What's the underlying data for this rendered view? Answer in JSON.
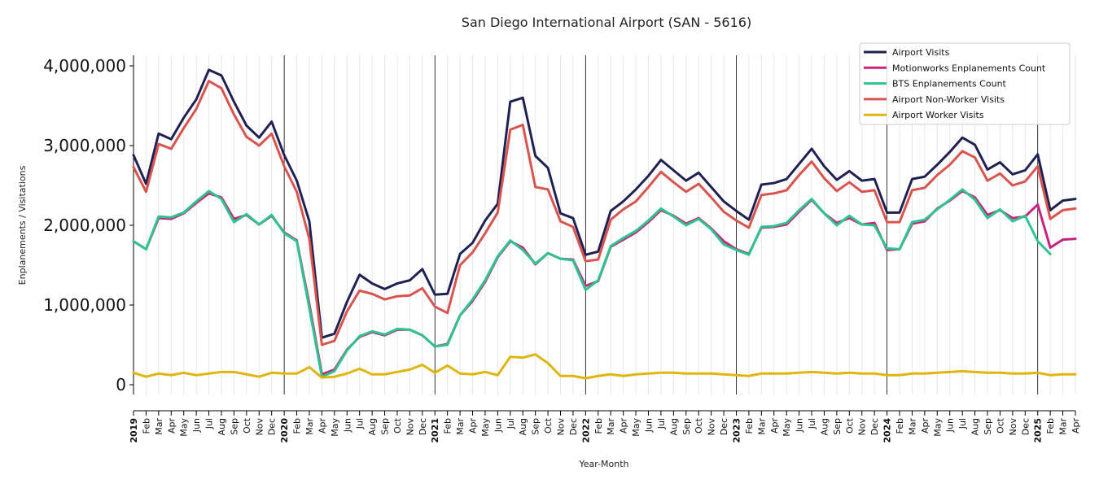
{
  "chart_data": {
    "type": "line",
    "title": "San Diego International Airport (SAN - 5616)",
    "xlabel": "Year-Month",
    "ylabel": "Enplanements / Visitations",
    "ylim": [
      0,
      4000000
    ],
    "yticks": [
      0,
      1000000,
      2000000,
      3000000,
      4000000
    ],
    "ytick_labels": [
      "0",
      "1,000,000",
      "2,000,000",
      "3,000,000",
      "4,000,000"
    ],
    "x_start": "2019-01",
    "x_end": "2025-04",
    "month_labels": [
      "Feb",
      "Mar",
      "Apr",
      "May",
      "Jun",
      "Jul",
      "Aug",
      "Sep",
      "Oct",
      "Nov",
      "Dec"
    ],
    "year_labels": [
      "2019",
      "2020",
      "2021",
      "2022",
      "2023",
      "2024",
      "2025"
    ],
    "extra_labels": [
      "Feb",
      "Mar",
      "Apr"
    ],
    "grid": "vertical-monthly",
    "legend_position": "top-right",
    "series": [
      {
        "name": "Airport Visits",
        "color": "#1f2153",
        "values": [
          2880000,
          2520000,
          3150000,
          3080000,
          3350000,
          3580000,
          3950000,
          3880000,
          3550000,
          3250000,
          3100000,
          3300000,
          2880000,
          2560000,
          2050000,
          590000,
          640000,
          1040000,
          1380000,
          1270000,
          1200000,
          1270000,
          1310000,
          1450000,
          1130000,
          1140000,
          1640000,
          1780000,
          2060000,
          2270000,
          3550000,
          3600000,
          2870000,
          2720000,
          2150000,
          2090000,
          1630000,
          1670000,
          2180000,
          2300000,
          2450000,
          2620000,
          2820000,
          2690000,
          2560000,
          2660000,
          2480000,
          2300000,
          2180000,
          2070000,
          2510000,
          2530000,
          2580000,
          2770000,
          2960000,
          2740000,
          2570000,
          2680000,
          2560000,
          2580000,
          2160000,
          2160000,
          2580000,
          2610000,
          2760000,
          2920000,
          3100000,
          3010000,
          2700000,
          2790000,
          2640000,
          2690000,
          2890000,
          2190000,
          2310000,
          2330000
        ]
      },
      {
        "name": "Motionworks Enplanements Count",
        "color": "#c9237f",
        "values": [
          1800000,
          1700000,
          2090000,
          2080000,
          2150000,
          2280000,
          2400000,
          2350000,
          2080000,
          2130000,
          2010000,
          2120000,
          1910000,
          1810000,
          1010000,
          130000,
          190000,
          440000,
          600000,
          660000,
          620000,
          690000,
          690000,
          620000,
          480000,
          510000,
          870000,
          1050000,
          1290000,
          1600000,
          1800000,
          1720000,
          1510000,
          1650000,
          1580000,
          1570000,
          1240000,
          1300000,
          1730000,
          1820000,
          1910000,
          2040000,
          2190000,
          2120000,
          2020000,
          2090000,
          1960000,
          1800000,
          1700000,
          1640000,
          1970000,
          1980000,
          2010000,
          2170000,
          2320000,
          2150000,
          2030000,
          2090000,
          2010000,
          2030000,
          1690000,
          1700000,
          2020000,
          2050000,
          2210000,
          2310000,
          2430000,
          2350000,
          2130000,
          2190000,
          2090000,
          2110000,
          2260000,
          1720000,
          1820000,
          1830000
        ]
      },
      {
        "name": "BTS Enplanements Count",
        "color": "#2ec48f",
        "values": [
          1800000,
          1700000,
          2110000,
          2100000,
          2160000,
          2300000,
          2430000,
          2330000,
          2040000,
          2140000,
          2010000,
          2130000,
          1900000,
          1800000,
          960000,
          100000,
          170000,
          430000,
          610000,
          670000,
          630000,
          700000,
          690000,
          620000,
          480000,
          500000,
          870000,
          1070000,
          1310000,
          1610000,
          1810000,
          1690000,
          1520000,
          1650000,
          1580000,
          1560000,
          1190000,
          1310000,
          1740000,
          1840000,
          1930000,
          2060000,
          2210000,
          2110000,
          2000000,
          2080000,
          1950000,
          1760000,
          1690000,
          1630000,
          1980000,
          1990000,
          2030000,
          2190000,
          2330000,
          2150000,
          2000000,
          2120000,
          2010000,
          2000000,
          1710000,
          1700000,
          2040000,
          2070000,
          2200000,
          2320000,
          2450000,
          2320000,
          2090000,
          2200000,
          2050000,
          2120000,
          1800000,
          1640000
        ]
      },
      {
        "name": "Airport Non-Worker Visits",
        "color": "#d9534f",
        "values": [
          2730000,
          2420000,
          3020000,
          2960000,
          3220000,
          3460000,
          3810000,
          3720000,
          3390000,
          3110000,
          3000000,
          3150000,
          2740000,
          2420000,
          1830000,
          500000,
          550000,
          920000,
          1180000,
          1140000,
          1070000,
          1110000,
          1120000,
          1210000,
          980000,
          900000,
          1500000,
          1660000,
          1900000,
          2160000,
          3200000,
          3260000,
          2480000,
          2450000,
          2050000,
          1980000,
          1550000,
          1570000,
          2070000,
          2200000,
          2300000,
          2480000,
          2670000,
          2540000,
          2420000,
          2520000,
          2350000,
          2170000,
          2060000,
          1970000,
          2380000,
          2400000,
          2440000,
          2630000,
          2800000,
          2590000,
          2430000,
          2540000,
          2420000,
          2440000,
          2040000,
          2040000,
          2440000,
          2470000,
          2630000,
          2760000,
          2930000,
          2850000,
          2560000,
          2650000,
          2500000,
          2550000,
          2740000,
          2080000,
          2190000,
          2210000
        ]
      },
      {
        "name": "Airport Worker Visits",
        "color": "#e0b50f",
        "values": [
          150000,
          100000,
          140000,
          120000,
          150000,
          120000,
          140000,
          160000,
          160000,
          130000,
          100000,
          150000,
          140000,
          140000,
          220000,
          90000,
          100000,
          140000,
          200000,
          130000,
          130000,
          160000,
          190000,
          250000,
          150000,
          240000,
          140000,
          130000,
          160000,
          120000,
          350000,
          340000,
          380000,
          270000,
          110000,
          110000,
          80000,
          110000,
          130000,
          110000,
          130000,
          140000,
          150000,
          150000,
          140000,
          140000,
          140000,
          130000,
          120000,
          110000,
          140000,
          140000,
          140000,
          150000,
          160000,
          150000,
          140000,
          150000,
          140000,
          140000,
          120000,
          120000,
          140000,
          140000,
          150000,
          160000,
          170000,
          160000,
          150000,
          150000,
          140000,
          140000,
          150000,
          120000,
          130000,
          130000
        ]
      }
    ]
  }
}
